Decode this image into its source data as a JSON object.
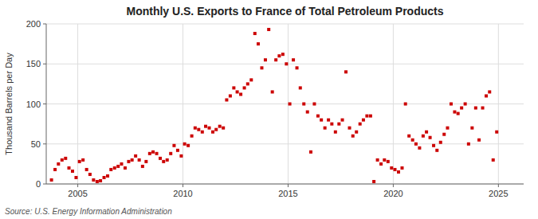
{
  "chart_data": {
    "type": "scatter",
    "title": "Monthly U.S. Exports to France of Total Petroleum Products",
    "ylabel": "Thousand Barrels per Day",
    "annotations": [
      "Source: U.S. Energy Information Administration"
    ],
    "color": "#cc0000",
    "marker": "square",
    "grid": true,
    "xlim": [
      2003.5,
      2026.2
    ],
    "xticks": [
      2005,
      2010,
      2015,
      2020,
      2025
    ],
    "ylim": [
      0,
      200
    ],
    "yticks": [
      0,
      50,
      100,
      150,
      200
    ],
    "x": [
      2003.75,
      2003.92,
      2004.08,
      2004.25,
      2004.42,
      2004.58,
      2004.75,
      2004.92,
      2005.08,
      2005.25,
      2005.42,
      2005.58,
      2005.75,
      2005.92,
      2006.08,
      2006.25,
      2006.42,
      2006.58,
      2006.75,
      2006.92,
      2007.08,
      2007.25,
      2007.42,
      2007.58,
      2007.75,
      2007.92,
      2008.08,
      2008.25,
      2008.42,
      2008.58,
      2008.75,
      2008.92,
      2009.08,
      2009.25,
      2009.42,
      2009.58,
      2009.75,
      2009.92,
      2010.08,
      2010.25,
      2010.42,
      2010.58,
      2010.75,
      2010.92,
      2011.08,
      2011.25,
      2011.42,
      2011.58,
      2011.75,
      2011.92,
      2012.08,
      2012.25,
      2012.42,
      2012.58,
      2012.75,
      2012.92,
      2013.08,
      2013.25,
      2013.42,
      2013.58,
      2013.75,
      2013.92,
      2014.08,
      2014.25,
      2014.42,
      2014.58,
      2014.75,
      2014.92,
      2015.08,
      2015.25,
      2015.42,
      2015.58,
      2015.75,
      2015.92,
      2016.08,
      2016.25,
      2016.42,
      2016.58,
      2016.75,
      2016.92,
      2017.08,
      2017.25,
      2017.42,
      2017.58,
      2017.75,
      2017.92,
      2018.08,
      2018.25,
      2018.42,
      2018.58,
      2018.75,
      2018.92,
      2019.08,
      2019.25,
      2019.42,
      2019.58,
      2019.75,
      2019.92,
      2020.08,
      2020.25,
      2020.42,
      2020.58,
      2020.75,
      2020.92,
      2021.08,
      2021.25,
      2021.42,
      2021.58,
      2021.75,
      2021.92,
      2022.08,
      2022.25,
      2022.42,
      2022.58,
      2022.75,
      2022.92,
      2023.08,
      2023.25,
      2023.42,
      2023.58,
      2023.75,
      2023.92,
      2024.08,
      2024.25,
      2024.42,
      2024.58,
      2024.75,
      2024.92
    ],
    "values": [
      5,
      18,
      25,
      30,
      32,
      20,
      16,
      8,
      28,
      30,
      18,
      12,
      5,
      3,
      4,
      8,
      10,
      18,
      20,
      22,
      25,
      20,
      28,
      30,
      35,
      30,
      22,
      28,
      38,
      40,
      38,
      32,
      28,
      30,
      38,
      48,
      42,
      35,
      50,
      48,
      60,
      70,
      68,
      65,
      72,
      70,
      65,
      68,
      72,
      70,
      105,
      110,
      120,
      115,
      112,
      120,
      125,
      130,
      188,
      175,
      145,
      155,
      193,
      115,
      155,
      160,
      162,
      150,
      100,
      155,
      145,
      120,
      100,
      90,
      40,
      100,
      85,
      80,
      70,
      80,
      75,
      65,
      75,
      80,
      140,
      70,
      60,
      65,
      75,
      80,
      85,
      85,
      3,
      30,
      25,
      30,
      28,
      20,
      18,
      15,
      20,
      100,
      60,
      55,
      50,
      45,
      60,
      65,
      58,
      48,
      42,
      52,
      62,
      70,
      100,
      90,
      88,
      95,
      100,
      50,
      70,
      95,
      55,
      95,
      110,
      115,
      30,
      65
    ]
  }
}
